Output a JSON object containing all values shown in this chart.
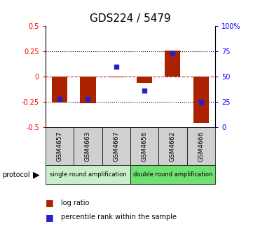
{
  "title": "GDS224 / 5479",
  "samples": [
    "GSM4657",
    "GSM4663",
    "GSM4667",
    "GSM4656",
    "GSM4662",
    "GSM4666"
  ],
  "log_ratios": [
    -0.255,
    -0.265,
    -0.005,
    -0.06,
    0.255,
    -0.455
  ],
  "percentile_ranks": [
    28,
    28,
    60,
    36,
    73,
    25
  ],
  "ylim_left": [
    -0.5,
    0.5
  ],
  "ylim_right": [
    0,
    100
  ],
  "yticks_left": [
    -0.5,
    -0.25,
    0,
    0.25,
    0.5
  ],
  "ytick_labels_left": [
    "-0.5",
    "-0.25",
    "0",
    "0.25",
    "0.5"
  ],
  "yticks_right": [
    0,
    25,
    50,
    75,
    100
  ],
  "ytick_labels_right": [
    "0",
    "25",
    "50",
    "75",
    "100%"
  ],
  "dotted_yticks": [
    -0.25,
    0.25
  ],
  "protocol_groups": [
    {
      "label": "single round amplification",
      "n_samples": 3,
      "color": "#c8f0c8"
    },
    {
      "label": "double round amplification",
      "n_samples": 3,
      "color": "#70e070"
    }
  ],
  "bar_color": "#aa2200",
  "percentile_color": "#2222cc",
  "zero_line_color": "#cc2222",
  "title_fontsize": 11,
  "bar_width": 0.55
}
